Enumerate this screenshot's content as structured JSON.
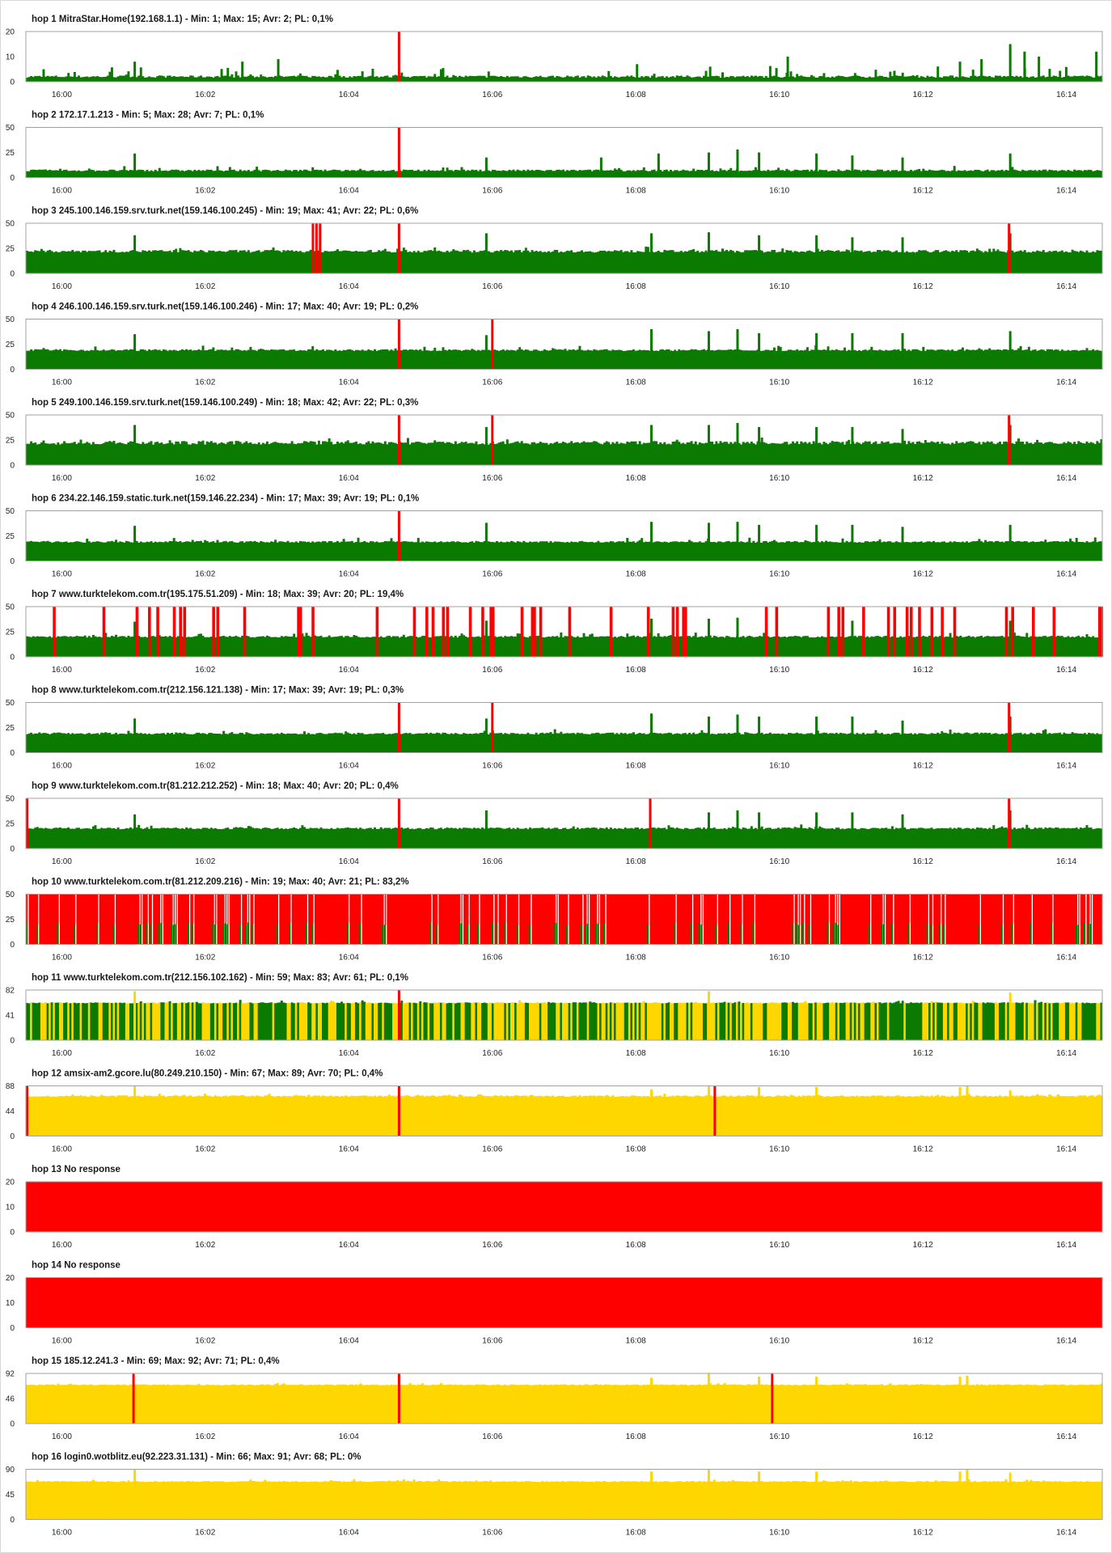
{
  "colors": {
    "ok": "#0a7a00",
    "loss": "#ff0000",
    "slow": "#ffd700",
    "axis": "#333333",
    "frame": "#a0a0a0"
  },
  "time_axis": {
    "ticks": [
      "16:00",
      "16:02",
      "16:04",
      "16:06",
      "16:08",
      "16:10",
      "16:12",
      "16:14"
    ],
    "range_minutes": [
      -0.5,
      14.5
    ]
  },
  "chart_data": [
    {
      "type": "bar",
      "title": "hop 1  MitraStar.Home(192.168.1.1) - Min: 1; Max: 15; Avr: 2; PL: 0,1%",
      "yticks": [
        "20",
        "10",
        "0"
      ],
      "ylim": [
        0,
        20
      ],
      "min": 1,
      "max": 15,
      "avg": 2,
      "pl": 0.1,
      "color": "ok",
      "loss_at": [
        4.7
      ],
      "spikes": [
        [
          1.0,
          8
        ],
        [
          2.5,
          8
        ],
        [
          3.0,
          9
        ],
        [
          8.0,
          7
        ],
        [
          10.1,
          10
        ],
        [
          12.5,
          8
        ],
        [
          12.8,
          9
        ],
        [
          13.2,
          15
        ],
        [
          13.4,
          12
        ],
        [
          13.6,
          10
        ],
        [
          14.4,
          12
        ]
      ]
    },
    {
      "type": "bar",
      "title": "hop 2  172.17.1.213 - Min: 5; Max: 28; Avr: 7; PL: 0,1%",
      "yticks": [
        "50",
        "25",
        "0"
      ],
      "ylim": [
        0,
        50
      ],
      "min": 5,
      "max": 28,
      "avg": 7,
      "pl": 0.1,
      "color": "ok",
      "loss_at": [
        4.7
      ],
      "spikes": [
        [
          1.0,
          24
        ],
        [
          5.9,
          20
        ],
        [
          7.5,
          20
        ],
        [
          8.3,
          24
        ],
        [
          9.0,
          25
        ],
        [
          9.4,
          28
        ],
        [
          9.7,
          25
        ],
        [
          10.5,
          24
        ],
        [
          11.0,
          22
        ],
        [
          11.7,
          20
        ],
        [
          13.2,
          24
        ]
      ]
    },
    {
      "type": "bar",
      "title": "hop 3  245.100.146.159.srv.turk.net(159.146.100.245) - Min: 19; Max: 41; Avr: 22; PL: 0,6%",
      "yticks": [
        "50",
        "25",
        "0"
      ],
      "ylim": [
        0,
        50
      ],
      "min": 19,
      "max": 41,
      "avg": 22,
      "pl": 0.6,
      "color": "ok",
      "loss_at": [
        3.5,
        3.55,
        3.6,
        4.7,
        13.2
      ],
      "spikes": [
        [
          1.0,
          38
        ],
        [
          5.9,
          40
        ],
        [
          8.2,
          40
        ],
        [
          9.0,
          41
        ],
        [
          9.7,
          38
        ],
        [
          10.5,
          38
        ],
        [
          11.0,
          36
        ],
        [
          11.7,
          36
        ],
        [
          13.2,
          40
        ]
      ]
    },
    {
      "type": "bar",
      "title": "hop 4  246.100.146.159.srv.turk.net(159.146.100.246) - Min: 17; Max: 40; Avr: 19; PL: 0,2%",
      "yticks": [
        "50",
        "25",
        "0"
      ],
      "ylim": [
        0,
        50
      ],
      "min": 17,
      "max": 40,
      "avg": 19,
      "pl": 0.2,
      "color": "ok",
      "loss_at": [
        4.7,
        6.0
      ],
      "spikes": [
        [
          1.0,
          35
        ],
        [
          5.9,
          34
        ],
        [
          8.2,
          40
        ],
        [
          9.0,
          38
        ],
        [
          9.4,
          40
        ],
        [
          9.7,
          36
        ],
        [
          10.5,
          36
        ],
        [
          11.0,
          36
        ],
        [
          11.7,
          36
        ],
        [
          13.2,
          38
        ]
      ]
    },
    {
      "type": "bar",
      "title": "hop 5  249.100.146.159.srv.turk.net(159.146.100.249) - Min: 18; Max: 42; Avr: 22; PL: 0,3%",
      "yticks": [
        "50",
        "25",
        "0"
      ],
      "ylim": [
        0,
        50
      ],
      "min": 18,
      "max": 42,
      "avg": 22,
      "pl": 0.3,
      "color": "ok",
      "loss_at": [
        4.7,
        6.0,
        13.2
      ],
      "spikes": [
        [
          1.0,
          40
        ],
        [
          5.9,
          38
        ],
        [
          8.2,
          40
        ],
        [
          9.0,
          40
        ],
        [
          9.4,
          42
        ],
        [
          9.7,
          38
        ],
        [
          10.5,
          38
        ],
        [
          11.0,
          38
        ],
        [
          11.7,
          36
        ],
        [
          13.2,
          40
        ]
      ]
    },
    {
      "type": "bar",
      "title": "hop 6  234.22.146.159.static.turk.net(159.146.22.234) - Min: 17; Max: 39; Avr: 19; PL: 0,1%",
      "yticks": [
        "50",
        "25",
        "0"
      ],
      "ylim": [
        0,
        50
      ],
      "min": 17,
      "max": 39,
      "avg": 19,
      "pl": 0.1,
      "color": "ok",
      "loss_at": [
        4.7
      ],
      "spikes": [
        [
          1.0,
          35
        ],
        [
          5.9,
          38
        ],
        [
          8.2,
          39
        ],
        [
          9.0,
          38
        ],
        [
          9.4,
          39
        ],
        [
          9.7,
          36
        ],
        [
          10.5,
          36
        ],
        [
          11.0,
          36
        ],
        [
          11.7,
          34
        ],
        [
          13.2,
          36
        ]
      ]
    },
    {
      "type": "bar",
      "title": "hop 7  www.turktelekom.com.tr(195.175.51.209) - Min: 18; Max: 39; Avr: 20; PL: 19,4%",
      "yticks": [
        "50",
        "25",
        "0"
      ],
      "ylim": [
        0,
        50
      ],
      "min": 18,
      "max": 39,
      "avg": 20,
      "pl": 19.4,
      "color": "ok",
      "loss_at": [],
      "spikes": [
        [
          1.0,
          35
        ],
        [
          5.9,
          36
        ],
        [
          8.2,
          38
        ],
        [
          9.0,
          38
        ],
        [
          9.4,
          39
        ],
        [
          11.0,
          36
        ],
        [
          13.2,
          36
        ]
      ]
    },
    {
      "type": "bar",
      "title": "hop 8  www.turktelekom.com.tr(212.156.121.138) - Min: 17; Max: 39; Avr: 19; PL: 0,3%",
      "yticks": [
        "50",
        "25",
        "0"
      ],
      "ylim": [
        0,
        50
      ],
      "min": 17,
      "max": 39,
      "avg": 19,
      "pl": 0.3,
      "color": "ok",
      "loss_at": [
        4.7,
        6.0,
        13.2
      ],
      "spikes": [
        [
          1.0,
          34
        ],
        [
          5.9,
          34
        ],
        [
          8.2,
          39
        ],
        [
          9.0,
          36
        ],
        [
          9.4,
          38
        ],
        [
          9.7,
          36
        ],
        [
          10.5,
          36
        ],
        [
          11.0,
          36
        ],
        [
          11.7,
          32
        ],
        [
          13.2,
          36
        ]
      ]
    },
    {
      "type": "bar",
      "title": "hop 9  www.turktelekom.com.tr(81.212.212.252) - Min: 18; Max: 40; Avr: 20; PL: 0,4%",
      "yticks": [
        "50",
        "25",
        "0"
      ],
      "ylim": [
        0,
        50
      ],
      "min": 18,
      "max": 40,
      "avg": 20,
      "pl": 0.4,
      "color": "ok",
      "loss_at": [
        -0.5,
        4.7,
        8.2,
        13.2
      ],
      "spikes": [
        [
          1.0,
          34
        ],
        [
          5.9,
          38
        ],
        [
          9.0,
          36
        ],
        [
          9.4,
          38
        ],
        [
          9.7,
          36
        ],
        [
          10.5,
          36
        ],
        [
          11.0,
          36
        ],
        [
          11.7,
          34
        ],
        [
          13.2,
          38
        ]
      ]
    },
    {
      "type": "bar",
      "title": "hop 10  www.turktelekom.com.tr(81.212.209.216) - Min: 19; Max: 40; Avr: 21; PL: 83,2%",
      "yticks": [
        "50",
        "25",
        "0"
      ],
      "ylim": [
        0,
        50
      ],
      "min": 19,
      "max": 40,
      "avg": 21,
      "pl": 83.2,
      "color": "ok",
      "loss_at": [],
      "spikes": []
    },
    {
      "type": "bar",
      "title": "hop 11  www.turktelekom.com.tr(212.156.102.162) - Min: 59; Max: 83; Avr: 61; PL: 0,1%",
      "yticks": [
        "82",
        "41",
        "0"
      ],
      "ylim": [
        0,
        82
      ],
      "min": 59,
      "max": 83,
      "avg": 61,
      "pl": 0.1,
      "color": "mixed",
      "loss_at": [
        4.7
      ],
      "spikes": [
        [
          1.0,
          80
        ],
        [
          9.0,
          80
        ],
        [
          13.2,
          78
        ]
      ]
    },
    {
      "type": "bar",
      "title": "hop 12  amsix-am2.gcore.lu(80.249.210.150) - Min: 67; Max: 89; Avr: 70; PL: 0,4%",
      "yticks": [
        "88",
        "44",
        "0"
      ],
      "ylim": [
        0,
        88
      ],
      "min": 67,
      "max": 89,
      "avg": 70,
      "pl": 0.4,
      "color": "slow",
      "loss_at": [
        -0.5,
        4.7,
        9.1
      ],
      "spikes": [
        [
          1.0,
          88
        ],
        [
          8.2,
          82
        ],
        [
          9.0,
          88
        ],
        [
          9.7,
          86
        ],
        [
          10.5,
          86
        ],
        [
          12.5,
          86
        ],
        [
          12.6,
          88
        ],
        [
          13.2,
          80
        ]
      ]
    },
    {
      "type": "bar",
      "title": "hop 13  No response",
      "yticks": [
        "20",
        "10",
        "0"
      ],
      "ylim": [
        0,
        20
      ],
      "pl": 100,
      "color": "none",
      "loss_at": [],
      "spikes": []
    },
    {
      "type": "bar",
      "title": "hop 14  No response",
      "yticks": [
        "20",
        "10",
        "0"
      ],
      "ylim": [
        0,
        20
      ],
      "pl": 100,
      "color": "none",
      "loss_at": [],
      "spikes": []
    },
    {
      "type": "bar",
      "title": "hop 15  185.12.241.3 - Min: 69; Max: 92; Avr: 71; PL: 0,4%",
      "yticks": [
        "92",
        "46",
        "0"
      ],
      "ylim": [
        0,
        92
      ],
      "min": 69,
      "max": 92,
      "avg": 71,
      "pl": 0.4,
      "color": "slow",
      "loss_at": [
        1.0,
        4.7,
        9.9
      ],
      "spikes": [
        [
          8.2,
          84
        ],
        [
          9.0,
          92
        ],
        [
          9.7,
          86
        ],
        [
          10.5,
          86
        ],
        [
          12.5,
          86
        ],
        [
          12.6,
          88
        ]
      ]
    },
    {
      "type": "bar",
      "title": "hop 16  login0.wotblitz.eu(92.223.31.131) - Min: 66; Max: 91; Avr: 68; PL: 0%",
      "yticks": [
        "90",
        "45",
        "0"
      ],
      "ylim": [
        0,
        90
      ],
      "min": 66,
      "max": 91,
      "avg": 68,
      "pl": 0,
      "color": "slow",
      "loss_at": [],
      "spikes": [
        [
          1.0,
          90
        ],
        [
          8.2,
          86
        ],
        [
          9.0,
          90
        ],
        [
          9.7,
          86
        ],
        [
          10.5,
          86
        ],
        [
          12.5,
          86
        ],
        [
          12.6,
          90
        ],
        [
          13.2,
          84
        ]
      ]
    }
  ]
}
